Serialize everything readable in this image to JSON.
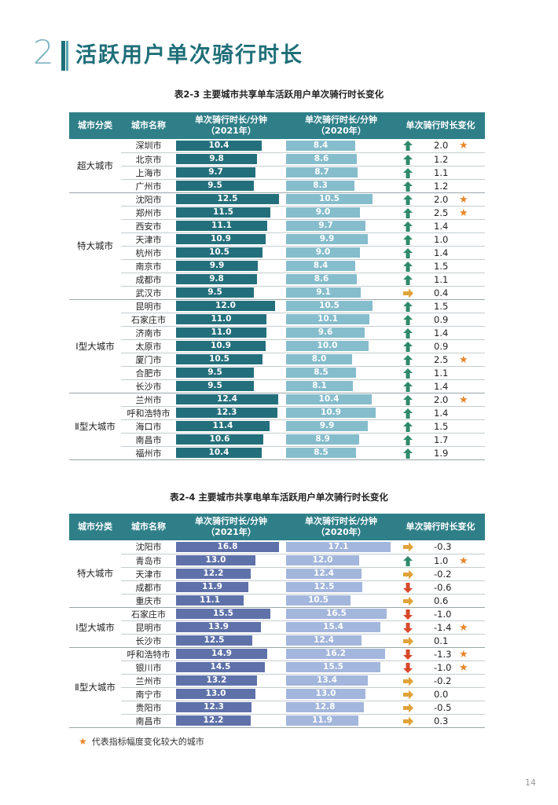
{
  "section": {
    "number": "2",
    "title": "活跃用户单次骑行时长"
  },
  "table1": {
    "caption": "表2-3 主要城市共享单车活跃用户单次骑行时长变化",
    "headers": {
      "category": "城市分类",
      "city": "城市名称",
      "col2021": "单次骑行时长/分钟\n（2021年）",
      "col2020": "单次骑行时长/分钟\n（2020年）",
      "change": "单次骑行时长变化"
    },
    "groups": [
      {
        "name": "超大城市",
        "rows": [
          {
            "city": "深圳市",
            "v2021": "10.4",
            "v2020": "8.4",
            "change": "2.0",
            "dir": "up",
            "star": true
          },
          {
            "city": "北京市",
            "v2021": "9.8",
            "v2020": "8.6",
            "change": "1.2",
            "dir": "up",
            "star": false
          },
          {
            "city": "上海市",
            "v2021": "9.7",
            "v2020": "8.7",
            "change": "1.1",
            "dir": "up",
            "star": false
          },
          {
            "city": "广州市",
            "v2021": "9.5",
            "v2020": "8.3",
            "change": "1.2",
            "dir": "up",
            "star": false
          }
        ]
      },
      {
        "name": "特大城市",
        "rows": [
          {
            "city": "沈阳市",
            "v2021": "12.5",
            "v2020": "10.5",
            "change": "2.0",
            "dir": "up",
            "star": true
          },
          {
            "city": "郑州市",
            "v2021": "11.5",
            "v2020": "9.0",
            "change": "2.5",
            "dir": "up",
            "star": true
          },
          {
            "city": "西安市",
            "v2021": "11.1",
            "v2020": "9.7",
            "change": "1.4",
            "dir": "up",
            "star": false
          },
          {
            "city": "天津市",
            "v2021": "10.9",
            "v2020": "9.9",
            "change": "1.0",
            "dir": "up",
            "star": false
          },
          {
            "city": "杭州市",
            "v2021": "10.5",
            "v2020": "9.0",
            "change": "1.4",
            "dir": "up",
            "star": false
          },
          {
            "city": "南京市",
            "v2021": "9.9",
            "v2020": "8.4",
            "change": "1.5",
            "dir": "up",
            "star": false
          },
          {
            "city": "成都市",
            "v2021": "9.8",
            "v2020": "8.6",
            "change": "1.1",
            "dir": "up",
            "star": false
          },
          {
            "city": "武汉市",
            "v2021": "9.5",
            "v2020": "9.1",
            "change": "0.4",
            "dir": "flat",
            "star": false
          }
        ]
      },
      {
        "name": "Ⅰ型大城市",
        "rows": [
          {
            "city": "昆明市",
            "v2021": "12.0",
            "v2020": "10.5",
            "change": "1.5",
            "dir": "up",
            "star": false
          },
          {
            "city": "石家庄市",
            "v2021": "11.0",
            "v2020": "10.1",
            "change": "0.9",
            "dir": "up",
            "star": false
          },
          {
            "city": "济南市",
            "v2021": "11.0",
            "v2020": "9.6",
            "change": "1.4",
            "dir": "up",
            "star": false
          },
          {
            "city": "太原市",
            "v2021": "10.9",
            "v2020": "10.0",
            "change": "0.9",
            "dir": "up",
            "star": false
          },
          {
            "city": "厦门市",
            "v2021": "10.5",
            "v2020": "8.0",
            "change": "2.5",
            "dir": "up",
            "star": true
          },
          {
            "city": "合肥市",
            "v2021": "9.5",
            "v2020": "8.5",
            "change": "1.1",
            "dir": "up",
            "star": false
          },
          {
            "city": "长沙市",
            "v2021": "9.5",
            "v2020": "8.1",
            "change": "1.4",
            "dir": "up",
            "star": false
          }
        ]
      },
      {
        "name": "Ⅱ型大城市",
        "rows": [
          {
            "city": "兰州市",
            "v2021": "12.4",
            "v2020": "10.4",
            "change": "2.0",
            "dir": "up",
            "star": true
          },
          {
            "city": "呼和浩特市",
            "v2021": "12.3",
            "v2020": "10.9",
            "change": "1.4",
            "dir": "up",
            "star": false
          },
          {
            "city": "海口市",
            "v2021": "11.4",
            "v2020": "9.9",
            "change": "1.5",
            "dir": "up",
            "star": false
          },
          {
            "city": "南昌市",
            "v2021": "10.6",
            "v2020": "8.9",
            "change": "1.7",
            "dir": "up",
            "star": false
          },
          {
            "city": "福州市",
            "v2021": "10.4",
            "v2020": "8.5",
            "change": "1.9",
            "dir": "up",
            "star": false
          }
        ]
      }
    ]
  },
  "table2": {
    "caption": "表2-4 主要城市共享电单车活跃用户单次骑行时长变化",
    "headers": {
      "category": "城市分类",
      "city": "城市名称",
      "col2021": "单次骑行时长/分钟\n（2021年）",
      "col2020": "单次骑行时长/分钟\n（2020年）",
      "change": "单次骑行时长变化"
    },
    "groups": [
      {
        "name": "特大城市",
        "rows": [
          {
            "city": "沈阳市",
            "v2021": "16.8",
            "v2020": "17.1",
            "change": "-0.3",
            "dir": "flat",
            "star": false
          },
          {
            "city": "青岛市",
            "v2021": "13.0",
            "v2020": "12.0",
            "change": "1.0",
            "dir": "up",
            "star": true
          },
          {
            "city": "天津市",
            "v2021": "12.2",
            "v2020": "12.4",
            "change": "-0.2",
            "dir": "flat",
            "star": false
          },
          {
            "city": "成都市",
            "v2021": "11.9",
            "v2020": "12.5",
            "change": "-0.6",
            "dir": "down",
            "star": false
          },
          {
            "city": "重庆市",
            "v2021": "11.1",
            "v2020": "10.5",
            "change": "0.6",
            "dir": "flat",
            "star": false
          }
        ]
      },
      {
        "name": "Ⅰ型大城市",
        "rows": [
          {
            "city": "石家庄市",
            "v2021": "15.5",
            "v2020": "16.5",
            "change": "-1.0",
            "dir": "down",
            "star": false
          },
          {
            "city": "昆明市",
            "v2021": "13.9",
            "v2020": "15.4",
            "change": "-1.4",
            "dir": "down",
            "star": true
          },
          {
            "city": "长沙市",
            "v2021": "12.5",
            "v2020": "12.4",
            "change": "0.1",
            "dir": "flat",
            "star": false
          }
        ]
      },
      {
        "name": "Ⅱ型大城市",
        "rows": [
          {
            "city": "呼和浩特市",
            "v2021": "14.9",
            "v2020": "16.2",
            "change": "-1.3",
            "dir": "down",
            "star": true
          },
          {
            "city": "银川市",
            "v2021": "14.5",
            "v2020": "15.5",
            "change": "-1.0",
            "dir": "down",
            "star": true
          },
          {
            "city": "兰州市",
            "v2021": "13.2",
            "v2020": "13.4",
            "change": "-0.2",
            "dir": "flat",
            "star": false
          },
          {
            "city": "南宁市",
            "v2021": "13.0",
            "v2020": "13.0",
            "change": "0.0",
            "dir": "flat",
            "star": false
          },
          {
            "city": "贵阳市",
            "v2021": "12.3",
            "v2020": "12.8",
            "change": "-0.5",
            "dir": "flat",
            "star": false
          },
          {
            "city": "南昌市",
            "v2021": "12.2",
            "v2020": "11.9",
            "change": "0.3",
            "dir": "flat",
            "star": false
          }
        ]
      }
    ]
  },
  "footnote": {
    "star": "★",
    "text": "代表指标幅度变化较大的城市"
  },
  "page_number": "14",
  "colors": {
    "teal_dark": "#246f7c",
    "teal_light": "#86bdcc",
    "blue_dark": "#5e71a9",
    "blue_light": "#a3b6dc",
    "arrow_up": "#2f8a6b",
    "arrow_flat": "#e0a33a",
    "arrow_down": "#d8482b",
    "star": "#e8852b"
  }
}
